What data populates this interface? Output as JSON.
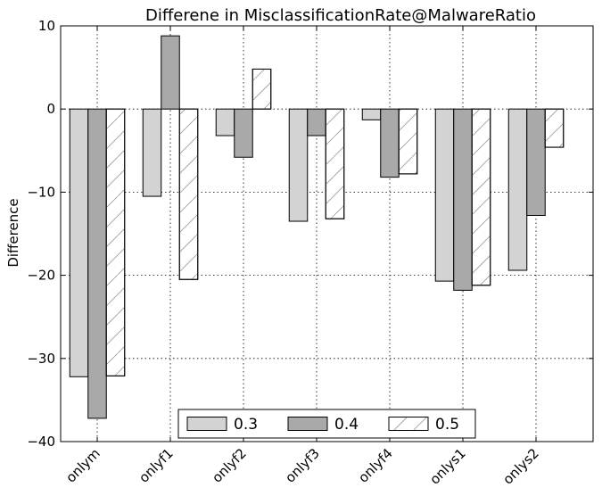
{
  "chart_data": {
    "type": "bar",
    "title": "Differene in MisclassificationRate@MalwareRatio",
    "xlabel": "",
    "ylabel": "Difference",
    "ylim": [
      -40,
      10
    ],
    "yticks": [
      10,
      0,
      -10,
      -20,
      -30,
      -40
    ],
    "ytick_labels": [
      "10",
      "0",
      "−10",
      "−20",
      "−30",
      "−40"
    ],
    "categories": [
      "onlym",
      "onlyf1",
      "onlyf2",
      "onlyf3",
      "onlyf4",
      "onlys1",
      "onlys2"
    ],
    "grid": true,
    "legend_position": "bottom-center",
    "series": [
      {
        "name": "0.3",
        "values": [
          -32.2,
          -10.5,
          -3.2,
          -13.5,
          -1.3,
          -20.7,
          -19.4
        ],
        "color": "#d3d3d3",
        "hatch": false
      },
      {
        "name": "0.4",
        "values": [
          -37.2,
          8.8,
          -5.8,
          -3.2,
          -8.2,
          -21.8,
          -12.8
        ],
        "color": "#a9a9a9",
        "hatch": false
      },
      {
        "name": "0.5",
        "values": [
          -32.1,
          -20.5,
          4.8,
          -13.2,
          -7.8,
          -21.2,
          -4.6
        ],
        "color": "#ffffff",
        "hatch": true
      }
    ]
  }
}
